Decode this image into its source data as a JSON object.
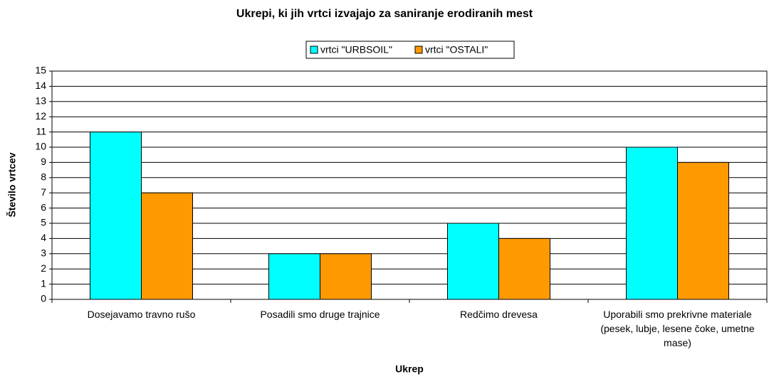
{
  "chart_data": {
    "type": "bar",
    "title": "Ukrepi, ki jih vrtci izvajajo za saniranje erodiranih mest",
    "x_label": "Ukrep",
    "y_label": "Število vrtcev",
    "categories": [
      "Dosejavamo travno rušo",
      "Posadili smo druge trajnice",
      "Redčimo drevesa",
      "Uporabili smo prekrivne materiale (pesek, lubje, lesene čoke, umetne mase)"
    ],
    "series": [
      {
        "name": "vrtci \"URBSOIL\"",
        "color": "#00ffff",
        "values": [
          11,
          3,
          5,
          10
        ]
      },
      {
        "name": "vrtci \"OSTALI\"",
        "color": "#ff9900",
        "values": [
          7,
          3,
          4,
          9
        ]
      }
    ],
    "ylim": [
      0,
      15
    ],
    "yticks": [
      0,
      1,
      2,
      3,
      4,
      5,
      6,
      7,
      8,
      9,
      10,
      11,
      12,
      13,
      14,
      15
    ],
    "grid": true,
    "legend": "top"
  }
}
